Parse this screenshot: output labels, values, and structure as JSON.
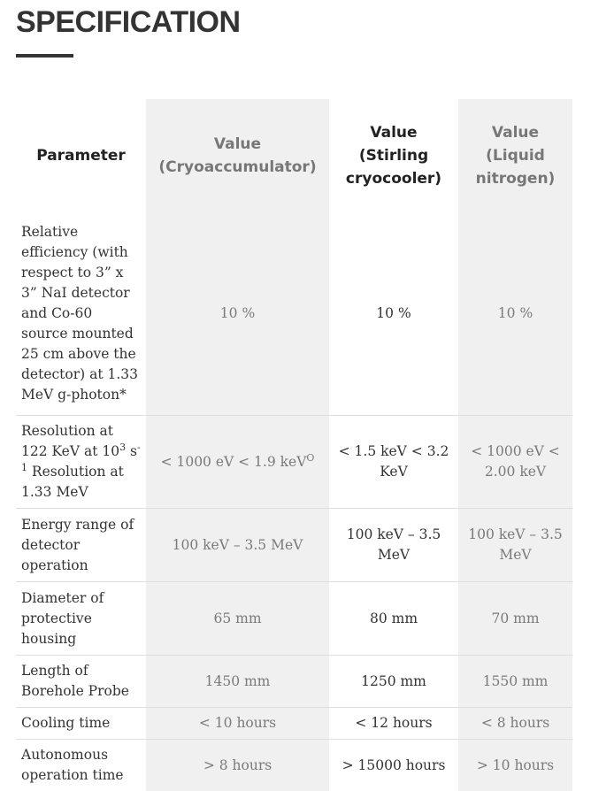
{
  "page": {
    "heading": "SPECIFICATION"
  },
  "table": {
    "headers": {
      "parameter": "Parameter",
      "cryoaccumulator": "Value (Cryoaccumulator)",
      "stirling": "Value (Stirling cryocooler)",
      "liquid_nitrogen": "Value (Liquid nitrogen)"
    },
    "rows": [
      {
        "parameter": "Relative efficiency (with respect to 3” x 3” NaI detector and Co-60 source mounted 25 cm above the detector) at 1.33 MeV g-photon*",
        "cryoaccumulator": "10 %",
        "stirling": "10 %",
        "liquid_nitrogen": "10 %"
      },
      {
        "parameter_part1": "Resolution at 122 KeV at 10",
        "parameter_sup1": "3",
        "parameter_part2": " s",
        "parameter_sup2": "-1",
        "parameter_part3": " Resolution at 1.33 MeV",
        "cryoaccumulator_main": "< 1000 eV < 1.9 keV",
        "cryoaccumulator_sup": "O",
        "stirling": "< 1.5 keV < 3.2 KeV",
        "liquid_nitrogen": "< 1000 eV < 2.00 keV"
      },
      {
        "parameter": "Energy range of detector operation",
        "cryoaccumulator": "100 keV – 3.5 MeV",
        "stirling": "100 keV – 3.5 MeV",
        "liquid_nitrogen": "100 keV – 3.5 MeV"
      },
      {
        "parameter": "Diameter of protective housing",
        "cryoaccumulator": "65 mm",
        "stirling": "80 mm",
        "liquid_nitrogen": "70 mm"
      },
      {
        "parameter": "Length of Borehole Probe",
        "cryoaccumulator": "1450 mm",
        "stirling": "1250 mm",
        "liquid_nitrogen": "1550 mm"
      },
      {
        "parameter": "Cooling time",
        "cryoaccumulator": "< 10 hours",
        "stirling": "< 12 hours",
        "liquid_nitrogen": "< 8 hours"
      },
      {
        "parameter": "Autonomous operation time",
        "cryoaccumulator": "> 8 hours",
        "stirling": "> 15000 hours",
        "liquid_nitrogen": "> 10 hours"
      }
    ]
  },
  "colors": {
    "heading": "#333333",
    "shaded_column_background": "#f0f0f0",
    "shaded_column_text": "#7a7a7a",
    "row_divider": "#dedede"
  }
}
